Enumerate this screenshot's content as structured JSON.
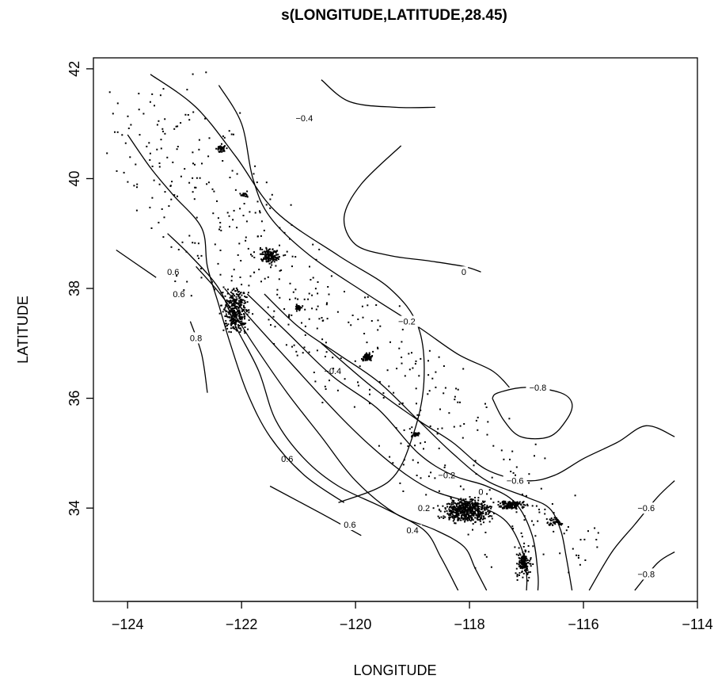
{
  "chart_data": {
    "type": "scatter",
    "title": "s(LONGITUDE,LATITUDE,28.45)",
    "xlabel": "LONGITUDE",
    "ylabel": "LATITUDE",
    "xlim": [
      -124.6,
      -114
    ],
    "ylim": [
      32.3,
      42.2
    ],
    "xticks": [
      -124,
      -122,
      -120,
      -118,
      -116,
      -114
    ],
    "yticks": [
      34,
      36,
      38,
      40,
      42
    ],
    "xtick_labels": [
      "−124",
      "−122",
      "−120",
      "−118",
      "−116",
      "−114"
    ],
    "ytick_labels": [
      "34",
      "36",
      "38",
      "40",
      "42"
    ],
    "grid": false,
    "contours": [
      {
        "label": "-0.4",
        "label_at": [
          -120.9,
          41.1
        ],
        "points": [
          [
            -123.6,
            41.9
          ],
          [
            -122.8,
            41.3
          ],
          [
            -122.1,
            40.4
          ],
          [
            -121.4,
            39.4
          ],
          [
            -120.3,
            38.6
          ],
          [
            -119.4,
            38.0
          ],
          [
            -118.9,
            37.3
          ],
          [
            -118.8,
            36.3
          ],
          [
            -119.0,
            35.3
          ],
          [
            -119.4,
            34.5
          ],
          [
            -120.3,
            34.1
          ]
        ]
      },
      {
        "label": "-0.4",
        "label_at": [
          -120.4,
          36.5
        ],
        "points": [
          [
            -120.6,
            41.8
          ],
          [
            -120.1,
            41.4
          ],
          [
            -119.3,
            41.3
          ],
          [
            -118.6,
            41.3
          ]
        ]
      },
      {
        "label": "-0.2",
        "label_at": [
          -119.1,
          37.4
        ],
        "points": [
          [
            -122.4,
            41.7
          ],
          [
            -122.0,
            41.0
          ],
          [
            -121.8,
            40.0
          ],
          [
            -121.5,
            39.3
          ],
          [
            -120.8,
            38.6
          ],
          [
            -119.8,
            37.9
          ],
          [
            -118.9,
            37.3
          ],
          [
            -118.2,
            36.8
          ],
          [
            -117.6,
            36.5
          ],
          [
            -117.3,
            36.2
          ]
        ]
      },
      {
        "label": "0",
        "label_at": [
          -118.1,
          38.3
        ],
        "points": [
          [
            -119.2,
            40.6
          ],
          [
            -119.9,
            39.9
          ],
          [
            -120.2,
            39.3
          ],
          [
            -120.0,
            38.8
          ],
          [
            -119.4,
            38.6
          ],
          [
            -118.7,
            38.5
          ],
          [
            -118.1,
            38.4
          ],
          [
            -117.8,
            38.3
          ]
        ]
      },
      {
        "label": "-0.8",
        "label_at": [
          -116.8,
          36.2
        ],
        "points": [
          [
            -117.6,
            36.0
          ],
          [
            -117.4,
            35.6
          ],
          [
            -117.1,
            35.3
          ],
          [
            -116.6,
            35.3
          ],
          [
            -116.3,
            35.6
          ],
          [
            -116.2,
            35.9
          ],
          [
            -116.4,
            36.1
          ],
          [
            -117.0,
            36.2
          ],
          [
            -117.5,
            36.1
          ],
          [
            -117.6,
            36.0
          ]
        ]
      },
      {
        "label": "-0.6",
        "label_at": [
          -117.2,
          34.5
        ],
        "points": [
          [
            -120.6,
            37.0
          ],
          [
            -119.7,
            36.2
          ],
          [
            -118.9,
            35.6
          ],
          [
            -118.3,
            35.2
          ],
          [
            -117.7,
            34.7
          ],
          [
            -117.0,
            34.5
          ],
          [
            -116.5,
            34.6
          ],
          [
            -116.0,
            34.9
          ],
          [
            -115.4,
            35.2
          ],
          [
            -114.9,
            35.5
          ],
          [
            -114.4,
            35.3
          ]
        ]
      },
      {
        "label": "-0.2",
        "label_at": [
          -118.4,
          34.6
        ],
        "points": [
          [
            -121.6,
            37.9
          ],
          [
            -121.0,
            37.3
          ],
          [
            -120.3,
            36.8
          ],
          [
            -119.6,
            36.3
          ],
          [
            -118.9,
            35.6
          ],
          [
            -118.3,
            35.0
          ],
          [
            -117.7,
            34.5
          ],
          [
            -117.0,
            34.2
          ],
          [
            -116.6,
            34.0
          ],
          [
            -116.4,
            33.6
          ],
          [
            -116.3,
            33.1
          ],
          [
            -116.2,
            32.5
          ]
        ]
      },
      {
        "label": "0",
        "label_at": [
          -117.8,
          34.3
        ],
        "points": [
          [
            -121.9,
            37.9
          ],
          [
            -121.2,
            37.2
          ],
          [
            -120.4,
            36.4
          ],
          [
            -119.6,
            35.8
          ],
          [
            -118.9,
            35.0
          ],
          [
            -118.3,
            34.6
          ],
          [
            -117.7,
            34.4
          ],
          [
            -117.2,
            34.1
          ],
          [
            -116.9,
            33.5
          ],
          [
            -116.8,
            32.8
          ],
          [
            -116.8,
            32.5
          ]
        ]
      },
      {
        "label": "0.2",
        "label_at": [
          -118.8,
          34.0
        ],
        "points": [
          [
            -122.3,
            38.0
          ],
          [
            -121.8,
            37.4
          ],
          [
            -121.1,
            36.6
          ],
          [
            -120.3,
            35.7
          ],
          [
            -119.7,
            35.1
          ],
          [
            -119.1,
            34.6
          ],
          [
            -118.6,
            34.3
          ],
          [
            -118.0,
            34.1
          ],
          [
            -117.4,
            33.8
          ],
          [
            -117.1,
            33.3
          ],
          [
            -117.0,
            32.8
          ],
          [
            -117.0,
            32.5
          ]
        ]
      },
      {
        "label": "0.4",
        "label_at": [
          -119.0,
          33.6
        ],
        "points": [
          [
            -122.8,
            38.4
          ],
          [
            -122.3,
            37.8
          ],
          [
            -121.8,
            37.0
          ],
          [
            -121.2,
            36.1
          ],
          [
            -120.6,
            35.3
          ],
          [
            -120.0,
            34.5
          ],
          [
            -119.3,
            33.9
          ],
          [
            -118.6,
            33.6
          ],
          [
            -118.1,
            33.3
          ],
          [
            -117.9,
            32.9
          ],
          [
            -117.7,
            32.5
          ]
        ]
      },
      {
        "label": "0.6",
        "label_at": [
          -121.2,
          34.9
        ],
        "points": [
          [
            -123.3,
            39.0
          ],
          [
            -122.9,
            38.6
          ],
          [
            -122.4,
            38.0
          ],
          [
            -122.1,
            37.3
          ],
          [
            -121.7,
            36.5
          ],
          [
            -121.4,
            35.6
          ],
          [
            -120.9,
            34.9
          ],
          [
            -120.3,
            34.4
          ],
          [
            -119.5,
            34.0
          ],
          [
            -118.8,
            33.6
          ],
          [
            -118.5,
            33.1
          ],
          [
            -118.2,
            32.5
          ]
        ]
      },
      {
        "label": "0.6",
        "label_at": [
          -123.1,
          37.9
        ],
        "points": [
          [
            -124.0,
            40.8
          ],
          [
            -123.6,
            40.2
          ],
          [
            -123.2,
            39.7
          ],
          [
            -122.7,
            39.1
          ],
          [
            -122.6,
            38.4
          ],
          [
            -122.4,
            37.7
          ],
          [
            -122.2,
            37.0
          ],
          [
            -121.9,
            36.1
          ],
          [
            -121.5,
            35.3
          ],
          [
            -120.9,
            34.6
          ],
          [
            -120.2,
            34.1
          ]
        ]
      },
      {
        "label": "0.6",
        "label_at": [
          -120.1,
          33.7
        ],
        "points": [
          [
            -121.5,
            34.4
          ],
          [
            -120.6,
            33.9
          ],
          [
            -119.9,
            33.5
          ]
        ]
      },
      {
        "label": "0.8",
        "label_at": [
          -122.8,
          37.1
        ],
        "points": [
          [
            -122.9,
            37.4
          ],
          [
            -122.7,
            36.8
          ],
          [
            -122.6,
            36.1
          ]
        ]
      },
      {
        "label": "0.6",
        "label_at": [
          -123.2,
          38.3
        ],
        "points": [
          [
            -124.2,
            38.7
          ],
          [
            -123.5,
            38.2
          ]
        ]
      },
      {
        "label": "-0.6",
        "label_at": [
          -114.9,
          34.0
        ],
        "points": [
          [
            -115.9,
            32.5
          ],
          [
            -115.5,
            33.2
          ],
          [
            -115.1,
            33.7
          ],
          [
            -114.7,
            34.2
          ],
          [
            -114.4,
            34.5
          ]
        ]
      },
      {
        "label": "-0.8",
        "label_at": [
          -114.9,
          32.8
        ],
        "points": [
          [
            -115.1,
            32.5
          ],
          [
            -114.7,
            33.0
          ],
          [
            -114.4,
            33.2
          ]
        ]
      }
    ],
    "clusters": [
      {
        "center": [
          -118.05,
          33.95
        ],
        "radius": [
          0.55,
          0.28
        ],
        "count": 520
      },
      {
        "center": [
          -117.25,
          34.05
        ],
        "radius": [
          0.35,
          0.12
        ],
        "count": 130
      },
      {
        "center": [
          -117.05,
          33.0
        ],
        "radius": [
          0.18,
          0.35
        ],
        "count": 150
      },
      {
        "center": [
          -122.1,
          37.6
        ],
        "radius": [
          0.3,
          0.55
        ],
        "count": 320
      },
      {
        "center": [
          -121.5,
          38.6
        ],
        "radius": [
          0.25,
          0.2
        ],
        "count": 130
      },
      {
        "center": [
          -119.8,
          36.75
        ],
        "radius": [
          0.12,
          0.1
        ],
        "count": 70
      },
      {
        "center": [
          -122.35,
          40.55
        ],
        "radius": [
          0.1,
          0.1
        ],
        "count": 45
      },
      {
        "center": [
          -121.0,
          37.65
        ],
        "radius": [
          0.1,
          0.08
        ],
        "count": 35
      },
      {
        "center": [
          -116.5,
          33.75
        ],
        "radius": [
          0.2,
          0.1
        ],
        "count": 45
      },
      {
        "center": [
          -118.95,
          35.35
        ],
        "radius": [
          0.1,
          0.06
        ],
        "count": 25
      },
      {
        "center": [
          -121.95,
          39.7
        ],
        "radius": [
          0.1,
          0.06
        ],
        "count": 18
      }
    ],
    "scatter_band": [
      [
        -124.1,
        41.5
      ],
      [
        -122.5,
        38.5
      ],
      [
        -120.0,
        36.5
      ],
      [
        -117.0,
        33.0
      ]
    ]
  }
}
